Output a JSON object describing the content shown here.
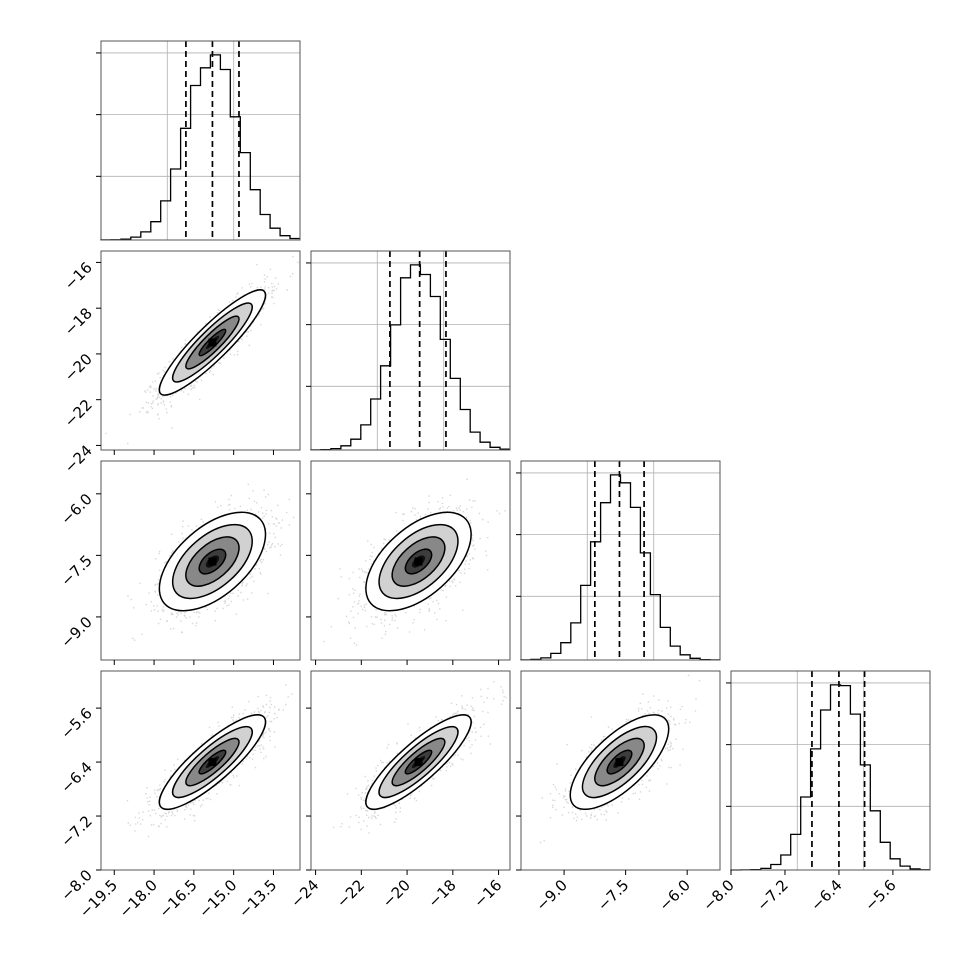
{
  "chart_data": {
    "type": "corner",
    "parameters": [
      {
        "xlim": [
          -20,
          -12.5
        ],
        "xticks": [
          -19.5,
          -18.0,
          -16.5,
          -15.0,
          -13.5
        ],
        "xtick_labels": [
          "−19.5",
          "−18.0",
          "−16.5",
          "−15.0",
          "−13.5"
        ],
        "yticks": [],
        "ytick_labels": [],
        "mean": -15.8,
        "sd": 1.0,
        "quantiles": [
          -16.8,
          -15.8,
          -14.8
        ]
      },
      {
        "xlim": [
          -24.2,
          -15.5
        ],
        "xticks": [
          -24,
          -22,
          -20,
          -18,
          -16
        ],
        "xtick_labels": [
          "−24",
          "−22",
          "−20",
          "−18",
          "−16"
        ],
        "yticks": [
          -16,
          -18,
          -20,
          -22,
          -24
        ],
        "ytick_labels": [
          "−16",
          "−18",
          "−20",
          "−22",
          "−24"
        ],
        "mean": -19.5,
        "sd": 1.15,
        "quantiles": [
          -20.75,
          -19.45,
          -18.3
        ]
      },
      {
        "xlim": [
          -10.05,
          -5.2
        ],
        "xticks": [
          -9.0,
          -7.5,
          -6.0
        ],
        "xtick_labels": [
          "−9.0",
          "−7.5",
          "−6.0"
        ],
        "yticks": [
          -6.0,
          -7.5,
          -9.0
        ],
        "ytick_labels": [
          "−6.0",
          "−7.5",
          "−9.0"
        ],
        "mean": -7.65,
        "sd": 0.6,
        "quantiles": [
          -8.25,
          -7.65,
          -7.05
        ]
      },
      {
        "xlim": [
          -8.0,
          -5.05
        ],
        "xticks": [
          -8.0,
          -7.2,
          -6.4,
          -5.6
        ],
        "xtick_labels": [
          "−8.0",
          "−7.2",
          "−6.4",
          "−5.6"
        ],
        "yticks": [
          -5.6,
          -6.4,
          -7.2,
          -8.0
        ],
        "ytick_labels": [
          "−5.6",
          "−6.4",
          "−7.2",
          "−8.0"
        ],
        "mean": -6.4,
        "sd": 0.35,
        "quantiles": [
          -6.8,
          -6.4,
          -6.02
        ]
      }
    ],
    "correlations": [
      [
        1.0,
        0.9,
        0.55,
        0.85
      ],
      [
        0.9,
        1.0,
        0.55,
        0.85
      ],
      [
        0.55,
        0.55,
        1.0,
        0.7
      ],
      [
        0.85,
        0.85,
        0.7,
        1.0
      ]
    ],
    "contour_levels": [
      "0.5σ",
      "1σ",
      "1.5σ",
      "2σ"
    ],
    "grid": true,
    "colors": {
      "line": "#000000",
      "density": "#000000",
      "grid": "#b0b0b0",
      "points": "#8c8c8c"
    }
  }
}
